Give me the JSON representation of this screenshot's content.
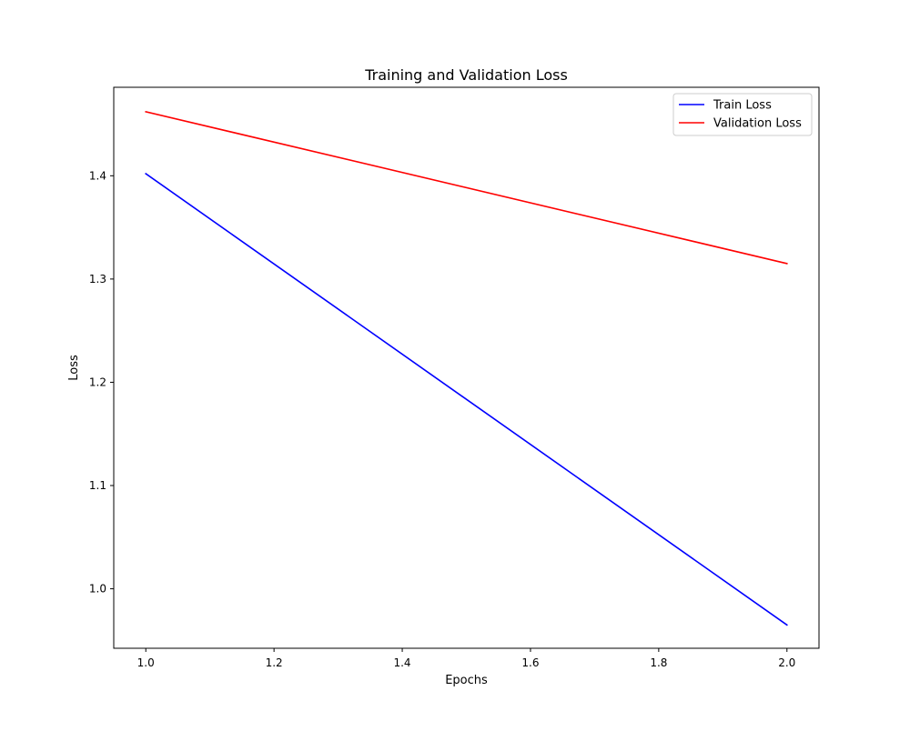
{
  "chart_data": {
    "type": "line",
    "title": "Training and Validation Loss",
    "xlabel": "Epochs",
    "ylabel": "Loss",
    "xlim": [
      0.95,
      2.05
    ],
    "ylim": [
      0.9424,
      1.4857
    ],
    "xticks": [
      1.0,
      1.2,
      1.4,
      1.6,
      1.8,
      2.0
    ],
    "xtick_labels": [
      "1.0",
      "1.2",
      "1.4",
      "1.6",
      "1.8",
      "2.0"
    ],
    "yticks": [
      1.0,
      1.1,
      1.2,
      1.3,
      1.4
    ],
    "ytick_labels": [
      "1.0",
      "1.1",
      "1.2",
      "1.3",
      "1.4"
    ],
    "grid": false,
    "legend_position": "top-right",
    "x": [
      1,
      2
    ],
    "series": [
      {
        "name": "Train Loss",
        "color": "#0000ff",
        "values": [
          1.402,
          0.965
        ]
      },
      {
        "name": "Validation Loss",
        "color": "#ff0000",
        "values": [
          1.462,
          1.315
        ]
      }
    ]
  }
}
